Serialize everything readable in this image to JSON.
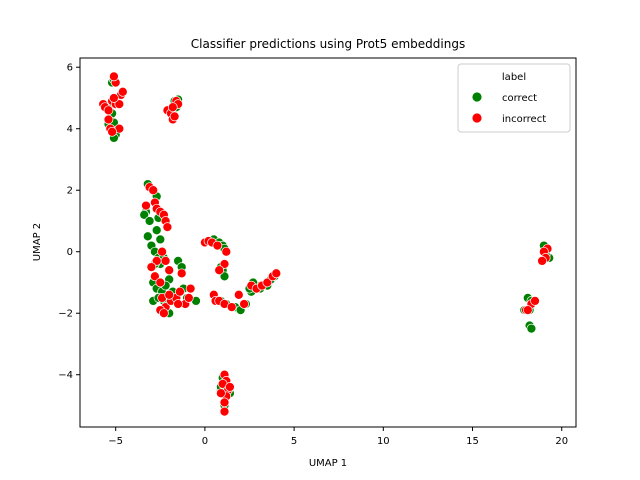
{
  "chart_data": {
    "type": "scatter",
    "title": "Classifier predictions using Prot5 embeddings",
    "xlabel": "UMAP 1",
    "ylabel": "UMAP 2",
    "xlim": [
      -7.0,
      20.8
    ],
    "ylim": [
      -5.7,
      6.3
    ],
    "xticks": [
      -5,
      0,
      5,
      10,
      15,
      20
    ],
    "yticks": [
      -4,
      -2,
      0,
      2,
      4,
      6
    ],
    "legend": {
      "title": "label",
      "position": "top-right"
    },
    "series": [
      {
        "name": "correct",
        "color": "#008000",
        "points": [
          [
            -5.4,
            4.15
          ],
          [
            -5.3,
            4.3
          ],
          [
            -5.2,
            4.5
          ],
          [
            -5.1,
            4.2
          ],
          [
            -5.0,
            3.8
          ],
          [
            -5.1,
            3.7
          ],
          [
            -5.2,
            5.5
          ],
          [
            -5.3,
            4.8
          ],
          [
            -5.1,
            5.6
          ],
          [
            -4.9,
            4.9
          ],
          [
            -1.7,
            4.9
          ],
          [
            -1.5,
            4.95
          ],
          [
            -1.6,
            4.7
          ],
          [
            -1.5,
            4.8
          ],
          [
            -3.2,
            2.2
          ],
          [
            -3.3,
            1.3
          ],
          [
            -3.4,
            1.2
          ],
          [
            -3.1,
            1.0
          ],
          [
            -3.2,
            0.5
          ],
          [
            -3.0,
            0.2
          ],
          [
            -2.7,
            1.8
          ],
          [
            -2.6,
            1.1
          ],
          [
            -2.7,
            0.7
          ],
          [
            -2.5,
            0.4
          ],
          [
            -2.8,
            0.0
          ],
          [
            -2.6,
            -0.2
          ],
          [
            -2.5,
            -0.4
          ],
          [
            -2.8,
            -0.4
          ],
          [
            -2.9,
            -1.0
          ],
          [
            -2.7,
            -1.2
          ],
          [
            -2.4,
            -1.3
          ],
          [
            -2.3,
            -1.6
          ],
          [
            -2.2,
            -1.8
          ],
          [
            -2.0,
            -2.0
          ],
          [
            -2.9,
            -1.6
          ],
          [
            -2.6,
            -1.5
          ],
          [
            -2.3,
            -0.2
          ],
          [
            -1.8,
            -1.3
          ],
          [
            -1.7,
            -1.6
          ],
          [
            -1.5,
            -0.3
          ],
          [
            -1.3,
            -0.5
          ],
          [
            -1.2,
            -1.2
          ],
          [
            -1.0,
            -1.5
          ],
          [
            -0.5,
            -1.6
          ],
          [
            -2.0,
            -0.9
          ],
          [
            -2.2,
            -1.1
          ],
          [
            0.5,
            0.4
          ],
          [
            0.8,
            0.3
          ],
          [
            1.0,
            0.2
          ],
          [
            1.1,
            0.1
          ],
          [
            0.9,
            -0.5
          ],
          [
            1.0,
            -0.6
          ],
          [
            1.1,
            -0.8
          ],
          [
            0.9,
            -1.6
          ],
          [
            1.2,
            -1.7
          ],
          [
            1.7,
            -1.8
          ],
          [
            2.0,
            -1.9
          ],
          [
            2.3,
            -1.7
          ],
          [
            2.6,
            -1.3
          ],
          [
            2.9,
            -1.1
          ],
          [
            2.7,
            -1.0
          ],
          [
            3.1,
            -1.2
          ],
          [
            3.5,
            -1.1
          ],
          [
            3.7,
            -0.9
          ],
          [
            3.9,
            -0.8
          ],
          [
            2.5,
            -1.2
          ],
          [
            1.0,
            -4.1
          ],
          [
            1.1,
            -4.3
          ],
          [
            0.9,
            -4.5
          ],
          [
            1.3,
            -4.4
          ],
          [
            1.4,
            -4.6
          ],
          [
            1.0,
            -4.6
          ],
          [
            1.1,
            -5.0
          ],
          [
            0.9,
            -4.4
          ],
          [
            18.1,
            -1.5
          ],
          [
            18.3,
            -1.6
          ],
          [
            18.2,
            -1.9
          ],
          [
            17.9,
            -1.9
          ],
          [
            18.2,
            -2.4
          ],
          [
            18.3,
            -2.5
          ],
          [
            19.0,
            0.2
          ],
          [
            19.3,
            -0.2
          ],
          [
            19.1,
            -0.1
          ]
        ]
      },
      {
        "name": "incorrect",
        "color": "#ff0000",
        "points": [
          [
            -5.7,
            4.8
          ],
          [
            -5.6,
            4.7
          ],
          [
            -5.4,
            4.6
          ],
          [
            -5.2,
            4.9
          ],
          [
            -5.0,
            4.8
          ],
          [
            -4.8,
            4.8
          ],
          [
            -4.7,
            5.1
          ],
          [
            -4.6,
            5.2
          ],
          [
            -5.1,
            5.0
          ],
          [
            -5.0,
            5.5
          ],
          [
            -5.1,
            5.7
          ],
          [
            -5.3,
            4.0
          ],
          [
            -4.8,
            4.0
          ],
          [
            -5.2,
            3.9
          ],
          [
            -5.4,
            4.3
          ],
          [
            -2.1,
            4.6
          ],
          [
            -1.9,
            4.5
          ],
          [
            -1.8,
            4.3
          ],
          [
            -1.7,
            4.4
          ],
          [
            -1.6,
            4.9
          ],
          [
            -1.5,
            4.8
          ],
          [
            -1.8,
            4.7
          ],
          [
            -3.1,
            2.1
          ],
          [
            -2.9,
            2.0
          ],
          [
            -2.8,
            1.6
          ],
          [
            -2.7,
            1.4
          ],
          [
            -3.3,
            1.5
          ],
          [
            -2.5,
            1.3
          ],
          [
            -2.3,
            1.2
          ],
          [
            -2.2,
            1.0
          ],
          [
            -2.1,
            0.8
          ],
          [
            -2.4,
            0.0
          ],
          [
            -2.2,
            -0.3
          ],
          [
            -2.0,
            -0.6
          ],
          [
            -2.7,
            -0.3
          ],
          [
            -3.0,
            -0.5
          ],
          [
            -2.8,
            -0.8
          ],
          [
            -2.5,
            -1.0
          ],
          [
            -2.4,
            -1.5
          ],
          [
            -2.2,
            -1.8
          ],
          [
            -2.5,
            -1.9
          ],
          [
            -2.3,
            -2.0
          ],
          [
            -1.9,
            -1.6
          ],
          [
            -1.6,
            -1.5
          ],
          [
            -1.4,
            -1.3
          ],
          [
            -1.3,
            -0.7
          ],
          [
            -1.1,
            -1.7
          ],
          [
            -0.9,
            -1.5
          ],
          [
            -0.8,
            -1.2
          ],
          [
            -1.5,
            -1.7
          ],
          [
            -2.0,
            -1.4
          ],
          [
            0.0,
            0.3
          ],
          [
            0.2,
            0.35
          ],
          [
            0.4,
            0.3
          ],
          [
            0.7,
            0.2
          ],
          [
            1.1,
            -0.4
          ],
          [
            0.8,
            -0.6
          ],
          [
            1.2,
            0.0
          ],
          [
            0.5,
            -1.4
          ],
          [
            0.6,
            -1.6
          ],
          [
            0.8,
            -1.6
          ],
          [
            1.1,
            -1.7
          ],
          [
            1.5,
            -1.8
          ],
          [
            1.9,
            -1.4
          ],
          [
            2.2,
            -1.7
          ],
          [
            2.6,
            -1.1
          ],
          [
            2.9,
            -1.2
          ],
          [
            3.2,
            -1.1
          ],
          [
            3.5,
            -1.0
          ],
          [
            3.8,
            -0.8
          ],
          [
            4.0,
            -0.7
          ],
          [
            1.1,
            -4.0
          ],
          [
            1.2,
            -4.2
          ],
          [
            1.0,
            -4.3
          ],
          [
            1.3,
            -4.5
          ],
          [
            1.4,
            -4.4
          ],
          [
            1.2,
            -4.7
          ],
          [
            1.1,
            -4.9
          ],
          [
            1.1,
            -5.2
          ],
          [
            0.9,
            -4.6
          ],
          [
            18.0,
            -1.9
          ],
          [
            18.3,
            -1.7
          ],
          [
            18.5,
            -1.6
          ],
          [
            18.1,
            -1.9
          ],
          [
            19.2,
            0.1
          ],
          [
            19.0,
            0.0
          ],
          [
            19.1,
            -0.2
          ],
          [
            18.9,
            -0.3
          ]
        ]
      }
    ]
  }
}
